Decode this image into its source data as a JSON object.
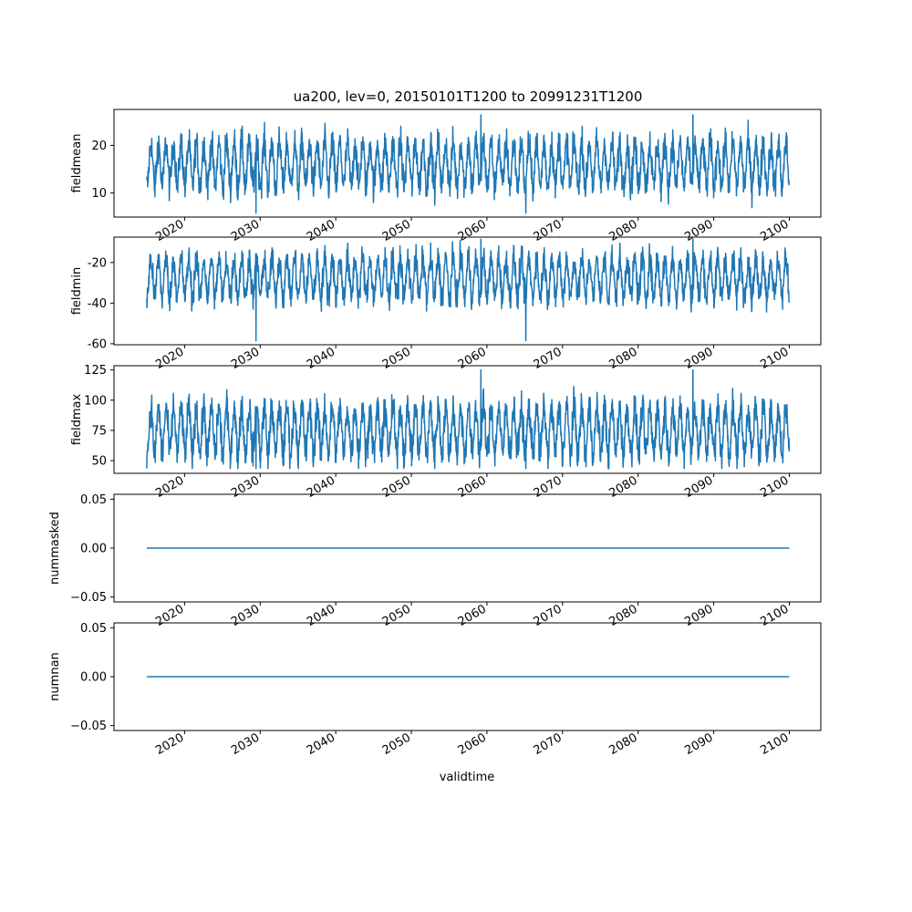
{
  "figure": {
    "title": "ua200, lev=0, 20150101T1200 to 20991231T1200",
    "xlabel": "validtime",
    "line_color": "#1f77b4"
  },
  "chart_data": [
    {
      "type": "line",
      "ylabel": "fieldmean",
      "x_range": [
        "2015-01-01",
        "2099-12-31"
      ],
      "xlim": [
        "2010-09-01",
        "2104-03-01"
      ],
      "ylim": [
        4.95,
        27.55
      ],
      "yticks": [
        10,
        20
      ],
      "xticks": [
        "2020",
        "2030",
        "2040",
        "2050",
        "2060",
        "2070",
        "2080",
        "2090",
        "2100"
      ],
      "series": [
        {
          "pattern": "seasonal cycle",
          "typical_min": 10,
          "typical_max": 22,
          "min": 5.8,
          "max": 26.4
        }
      ]
    },
    {
      "type": "line",
      "ylabel": "fieldmin",
      "x_range": [
        "2015-01-01",
        "2099-12-31"
      ],
      "xlim": [
        "2010-09-01",
        "2104-03-01"
      ],
      "ylim": [
        -60.5,
        -7.5
      ],
      "yticks": [
        -60,
        -40,
        -20
      ],
      "xticks": [
        "2020",
        "2030",
        "2040",
        "2050",
        "2060",
        "2070",
        "2080",
        "2090",
        "2100"
      ],
      "series": [
        {
          "pattern": "seasonal cycle",
          "typical_min": -40,
          "typical_max": -15,
          "min": -58.5,
          "max": -8.5
        }
      ]
    },
    {
      "type": "line",
      "ylabel": "fieldmax",
      "x_range": [
        "2015-01-01",
        "2099-12-31"
      ],
      "xlim": [
        "2010-09-01",
        "2104-03-01"
      ],
      "ylim": [
        39.5,
        128.5
      ],
      "yticks": [
        50,
        75,
        100,
        125
      ],
      "xticks": [
        "2020",
        "2030",
        "2040",
        "2050",
        "2060",
        "2070",
        "2080",
        "2090",
        "2100"
      ],
      "series": [
        {
          "pattern": "seasonal cycle",
          "typical_min": 50,
          "typical_max": 100,
          "min": 43.5,
          "max": 125
        }
      ]
    },
    {
      "type": "line",
      "ylabel": "nummasked",
      "x_range": [
        "2015-01-01",
        "2099-12-31"
      ],
      "xlim": [
        "2010-09-01",
        "2104-03-01"
      ],
      "ylim": [
        -0.055,
        0.055
      ],
      "yticks": [
        -0.05,
        0.0,
        0.05
      ],
      "ytick_labels": [
        "−0.05",
        "0.00",
        "0.05"
      ],
      "xticks": [
        "2020",
        "2030",
        "2040",
        "2050",
        "2060",
        "2070",
        "2080",
        "2090",
        "2100"
      ],
      "series": [
        {
          "pattern": "constant",
          "value": 0
        }
      ]
    },
    {
      "type": "line",
      "ylabel": "numnan",
      "x_range": [
        "2015-01-01",
        "2099-12-31"
      ],
      "xlim": [
        "2010-09-01",
        "2104-03-01"
      ],
      "ylim": [
        -0.055,
        0.055
      ],
      "yticks": [
        -0.05,
        0.0,
        0.05
      ],
      "ytick_labels": [
        "−0.05",
        "0.00",
        "0.05"
      ],
      "xticks": [
        "2020",
        "2030",
        "2040",
        "2050",
        "2060",
        "2070",
        "2080",
        "2090",
        "2100"
      ],
      "series": [
        {
          "pattern": "constant",
          "value": 0
        }
      ]
    }
  ]
}
